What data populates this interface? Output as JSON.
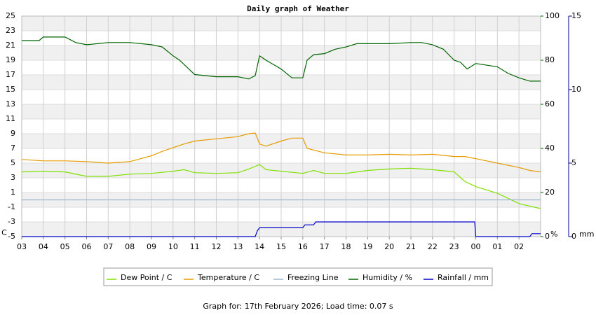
{
  "chart_data": {
    "type": "line",
    "title": "Daily graph of Weather",
    "xlim": [
      0,
      24
    ],
    "xticks": [
      {
        "value": 0,
        "label": "03"
      },
      {
        "value": 1,
        "label": "04"
      },
      {
        "value": 2,
        "label": "05"
      },
      {
        "value": 3,
        "label": "06"
      },
      {
        "value": 4,
        "label": "07"
      },
      {
        "value": 5,
        "label": "08"
      },
      {
        "value": 6,
        "label": "09"
      },
      {
        "value": 7,
        "label": "10"
      },
      {
        "value": 8,
        "label": "11"
      },
      {
        "value": 9,
        "label": "12"
      },
      {
        "value": 10,
        "label": "13"
      },
      {
        "value": 11,
        "label": "14"
      },
      {
        "value": 12,
        "label": "15"
      },
      {
        "value": 13,
        "label": "16"
      },
      {
        "value": 14,
        "label": "17"
      },
      {
        "value": 15,
        "label": "18"
      },
      {
        "value": 16,
        "label": "19"
      },
      {
        "value": 17,
        "label": "20"
      },
      {
        "value": 18,
        "label": "21"
      },
      {
        "value": 19,
        "label": "22"
      },
      {
        "value": 20,
        "label": "23"
      },
      {
        "value": 21,
        "label": "00"
      },
      {
        "value": 22,
        "label": "01"
      },
      {
        "value": 23,
        "label": "02"
      }
    ],
    "ylabel": "C",
    "ylim": [
      -5,
      25
    ],
    "yticks": [
      -5,
      -3,
      -1,
      1,
      3,
      5,
      7,
      9,
      11,
      13,
      15,
      17,
      19,
      21,
      23,
      25
    ],
    "ycolor": "#e6a000",
    "y2label": "%",
    "y2lim": [
      0,
      100
    ],
    "y2ticks": [
      0,
      20,
      40,
      60,
      80,
      100
    ],
    "y2color": "#006400",
    "y3label": "mm",
    "y3lim": [
      0,
      15
    ],
    "y3ticks": [
      0,
      5,
      10,
      15
    ],
    "y3color": "#00008b",
    "grid": true,
    "series": [
      {
        "name": "Dew Point / C",
        "color": "#7fe000",
        "x": [
          0,
          1,
          2,
          3,
          4,
          5,
          6,
          7,
          7.5,
          8,
          9,
          10,
          10.5,
          11,
          11.3,
          12,
          13,
          13.5,
          14,
          15,
          16,
          17,
          18,
          19,
          20,
          20.5,
          21,
          22,
          23,
          24
        ],
        "values": [
          3.8,
          3.9,
          3.8,
          3.2,
          3.2,
          3.5,
          3.6,
          3.9,
          4.1,
          3.7,
          3.6,
          3.7,
          4.2,
          4.8,
          4.1,
          3.9,
          3.6,
          4.0,
          3.6,
          3.6,
          4.0,
          4.2,
          4.3,
          4.1,
          3.8,
          2.5,
          1.8,
          0.9,
          -0.5,
          -1.2
        ]
      },
      {
        "name": "Temperature / C",
        "color": "#e69a00",
        "x": [
          0,
          1,
          2,
          3,
          4,
          5,
          5.5,
          6,
          6.5,
          7,
          7.5,
          8,
          9,
          10,
          10.5,
          10.8,
          11,
          11.3,
          12,
          12.5,
          13,
          13.2,
          14,
          15,
          16,
          17,
          18,
          19,
          20,
          20.5,
          21,
          22,
          23,
          23.5,
          24
        ],
        "values": [
          5.5,
          5.3,
          5.3,
          5.2,
          5.0,
          5.2,
          5.6,
          6.0,
          6.6,
          7.1,
          7.6,
          8.0,
          8.3,
          8.6,
          9.0,
          9.1,
          7.6,
          7.3,
          8.0,
          8.4,
          8.4,
          7.0,
          6.4,
          6.1,
          6.1,
          6.2,
          6.1,
          6.2,
          5.9,
          5.9,
          5.6,
          5.0,
          4.4,
          4.0,
          3.8
        ]
      },
      {
        "name": "Freezing Line",
        "color": "#9ab8cc",
        "x": [
          0,
          24
        ],
        "values": [
          0,
          0
        ]
      },
      {
        "name": "Humidity / %",
        "color": "#006400",
        "axis": "y2",
        "x": [
          0,
          0.8,
          1,
          2,
          2.5,
          3,
          3.5,
          4,
          5,
          6,
          6.5,
          7,
          7.3,
          8,
          9,
          10,
          10.5,
          10.8,
          11,
          11.3,
          12,
          12.5,
          13,
          13.2,
          13.5,
          14,
          14.5,
          15,
          15.5,
          16,
          17,
          18,
          18.5,
          19,
          19.5,
          20,
          20.3,
          20.6,
          21,
          22,
          22.5,
          23,
          23.5,
          24
        ],
        "values": [
          88.9,
          88.9,
          90.5,
          90.5,
          88,
          87,
          87.5,
          88,
          88,
          87,
          86,
          82,
          80,
          73.5,
          72.5,
          72.5,
          71.5,
          73,
          82,
          80,
          76,
          72,
          72,
          80,
          82.5,
          83,
          85,
          86,
          87.5,
          87.5,
          87.5,
          88,
          88,
          87,
          85,
          80,
          79,
          76,
          78.5,
          77,
          74,
          72,
          70.5,
          70.5
        ]
      },
      {
        "name": "Rainfall / mm",
        "color": "#0000c8",
        "axis": "y3",
        "x": [
          0,
          10.8,
          10.9,
          11,
          13,
          13.1,
          13.5,
          13.6,
          20.95,
          21,
          23.5,
          23.6,
          24
        ],
        "values": [
          0,
          0,
          0.4,
          0.6,
          0.6,
          0.8,
          0.8,
          1.0,
          1.0,
          0,
          0,
          0.2,
          0.2
        ]
      }
    ],
    "footer": "Graph for: 17th February 2026; Load time: 0.07 s"
  }
}
